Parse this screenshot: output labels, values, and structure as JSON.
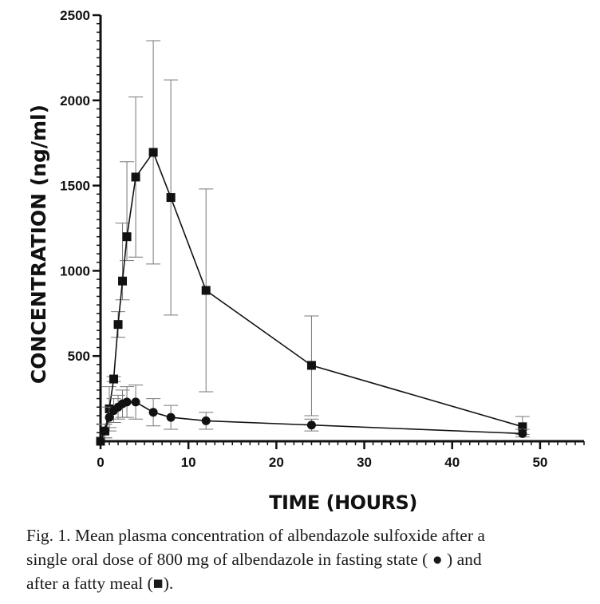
{
  "chart_data": {
    "type": "line",
    "xlabel": "TIME (HOURS)",
    "ylabel": "CONCENTRATION (ng/ml)",
    "xlim": [
      0,
      55
    ],
    "ylim": [
      0,
      2500
    ],
    "xticks": [
      0,
      10,
      20,
      30,
      40,
      50
    ],
    "yticks": [
      500,
      1000,
      1500,
      2000,
      2500
    ],
    "grid": false,
    "series": [
      {
        "marker": "square",
        "x": [
          0,
          0.5,
          1,
          1.5,
          2,
          2.5,
          3,
          4,
          6,
          8,
          12,
          24,
          48
        ],
        "y": [
          0,
          60,
          190,
          365,
          685,
          940,
          1200,
          1550,
          1695,
          1430,
          885,
          445,
          85
        ],
        "err_low": [
          0,
          20,
          60,
          350,
          610,
          830,
          1060,
          1080,
          1040,
          740,
          290,
          150,
          40
        ],
        "err_high": [
          0,
          100,
          320,
          380,
          760,
          1280,
          1640,
          2020,
          2350,
          2120,
          1480,
          735,
          145
        ]
      },
      {
        "marker": "circle",
        "x": [
          0,
          0.5,
          1,
          1.5,
          2,
          2.5,
          3,
          4,
          6,
          8,
          12,
          24,
          48
        ],
        "y": [
          0,
          60,
          140,
          180,
          200,
          220,
          230,
          230,
          170,
          140,
          120,
          95,
          45
        ],
        "err_low": [
          0,
          20,
          80,
          110,
          130,
          140,
          140,
          130,
          90,
          70,
          70,
          60,
          25
        ],
        "err_high": [
          0,
          100,
          200,
          250,
          270,
          300,
          320,
          330,
          250,
          210,
          170,
          130,
          70
        ]
      }
    ]
  },
  "caption": {
    "line1": "Fig. 1. Mean plasma concentration of albendazole sulfoxide after a",
    "line2": "single oral dose of 800 mg of albendazole in fasting state ( ● ) and",
    "line3": "after a fatty meal (■)."
  },
  "colors": {
    "ink": "#111111",
    "errorbar": "#777777"
  }
}
